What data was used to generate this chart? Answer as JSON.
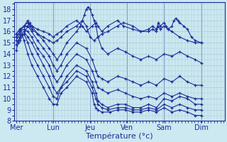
{
  "bg_color": "#cce8f0",
  "line_color": "#1a2d99",
  "grid_color": "#aac8d8",
  "marker": "+",
  "xlabel": "Température (°c)",
  "day_labels": [
    "Mer",
    "Lun",
    "Jeu",
    "Ven",
    "Sam",
    "Dim"
  ],
  "day_x": [
    0.0,
    0.95,
    1.9,
    2.85,
    3.8,
    4.75
  ],
  "ylim": [
    8.0,
    18.6
  ],
  "xlim": [
    -0.05,
    5.35
  ],
  "yticks": [
    8,
    9,
    10,
    11,
    12,
    13,
    14,
    15,
    16,
    17,
    18
  ],
  "series": [
    [
      [
        0.0,
        14.3
      ],
      [
        0.05,
        15.0
      ],
      [
        0.1,
        15.5
      ],
      [
        0.15,
        15.8
      ],
      [
        0.2,
        15.2
      ],
      [
        0.3,
        14.0
      ],
      [
        0.4,
        13.0
      ],
      [
        0.55,
        12.0
      ],
      [
        0.7,
        11.0
      ],
      [
        0.85,
        10.0
      ],
      [
        0.95,
        9.5
      ],
      [
        1.05,
        9.5
      ],
      [
        1.15,
        10.5
      ],
      [
        1.3,
        11.0
      ],
      [
        1.55,
        12.0
      ],
      [
        1.8,
        11.5
      ],
      [
        1.95,
        10.5
      ],
      [
        2.0,
        9.5
      ],
      [
        2.05,
        9.2
      ],
      [
        2.1,
        9.0
      ],
      [
        2.2,
        8.8
      ],
      [
        2.4,
        8.8
      ],
      [
        2.6,
        9.0
      ],
      [
        2.8,
        9.0
      ],
      [
        3.0,
        8.8
      ],
      [
        3.2,
        8.8
      ],
      [
        3.4,
        9.0
      ],
      [
        3.6,
        8.8
      ],
      [
        3.8,
        9.2
      ],
      [
        4.0,
        8.8
      ],
      [
        4.2,
        9.0
      ],
      [
        4.4,
        8.8
      ],
      [
        4.6,
        8.5
      ],
      [
        4.75,
        8.5
      ]
    ],
    [
      [
        0.0,
        14.8
      ],
      [
        0.05,
        15.2
      ],
      [
        0.1,
        15.5
      ],
      [
        0.2,
        15.8
      ],
      [
        0.3,
        15.0
      ],
      [
        0.4,
        14.0
      ],
      [
        0.55,
        13.0
      ],
      [
        0.7,
        12.0
      ],
      [
        0.85,
        11.0
      ],
      [
        0.95,
        10.2
      ],
      [
        1.05,
        10.0
      ],
      [
        1.15,
        11.0
      ],
      [
        1.3,
        11.5
      ],
      [
        1.55,
        12.5
      ],
      [
        1.8,
        12.0
      ],
      [
        1.95,
        11.0
      ],
      [
        2.05,
        10.0
      ],
      [
        2.1,
        9.5
      ],
      [
        2.2,
        9.2
      ],
      [
        2.35,
        9.0
      ],
      [
        2.6,
        9.2
      ],
      [
        2.8,
        9.2
      ],
      [
        3.0,
        9.0
      ],
      [
        3.2,
        9.0
      ],
      [
        3.4,
        9.2
      ],
      [
        3.6,
        9.0
      ],
      [
        3.8,
        9.5
      ],
      [
        4.0,
        9.2
      ],
      [
        4.2,
        9.5
      ],
      [
        4.4,
        9.2
      ],
      [
        4.6,
        9.0
      ],
      [
        4.75,
        9.0
      ]
    ],
    [
      [
        0.0,
        15.2
      ],
      [
        0.1,
        15.8
      ],
      [
        0.2,
        16.0
      ],
      [
        0.3,
        15.5
      ],
      [
        0.4,
        15.0
      ],
      [
        0.55,
        14.0
      ],
      [
        0.7,
        13.0
      ],
      [
        0.85,
        12.0
      ],
      [
        0.95,
        11.0
      ],
      [
        1.05,
        10.5
      ],
      [
        1.15,
        11.0
      ],
      [
        1.3,
        12.0
      ],
      [
        1.55,
        13.0
      ],
      [
        1.8,
        12.5
      ],
      [
        1.95,
        11.5
      ],
      [
        2.05,
        10.5
      ],
      [
        2.1,
        9.8
      ],
      [
        2.2,
        9.5
      ],
      [
        2.35,
        9.2
      ],
      [
        2.6,
        9.5
      ],
      [
        2.8,
        9.5
      ],
      [
        3.0,
        9.2
      ],
      [
        3.2,
        9.2
      ],
      [
        3.4,
        9.5
      ],
      [
        3.6,
        9.2
      ],
      [
        3.8,
        10.0
      ],
      [
        4.0,
        9.8
      ],
      [
        4.2,
        10.2
      ],
      [
        4.4,
        10.0
      ],
      [
        4.6,
        9.5
      ],
      [
        4.75,
        9.5
      ]
    ],
    [
      [
        0.0,
        15.5
      ],
      [
        0.1,
        16.0
      ],
      [
        0.2,
        16.2
      ],
      [
        0.3,
        16.0
      ],
      [
        0.4,
        15.5
      ],
      [
        0.55,
        14.5
      ],
      [
        0.7,
        13.8
      ],
      [
        0.85,
        13.0
      ],
      [
        0.95,
        12.0
      ],
      [
        1.05,
        11.5
      ],
      [
        1.15,
        12.0
      ],
      [
        1.3,
        13.0
      ],
      [
        1.55,
        14.0
      ],
      [
        1.8,
        13.5
      ],
      [
        1.95,
        12.5
      ],
      [
        2.05,
        11.5
      ],
      [
        2.1,
        11.0
      ],
      [
        2.2,
        10.8
      ],
      [
        2.35,
        10.5
      ],
      [
        2.6,
        10.8
      ],
      [
        2.8,
        10.5
      ],
      [
        3.0,
        10.2
      ],
      [
        3.2,
        10.0
      ],
      [
        3.4,
        10.2
      ],
      [
        3.6,
        10.0
      ],
      [
        3.8,
        10.5
      ],
      [
        4.0,
        10.2
      ],
      [
        4.2,
        10.5
      ],
      [
        4.4,
        10.2
      ],
      [
        4.6,
        10.0
      ],
      [
        4.75,
        10.0
      ]
    ],
    [
      [
        0.0,
        15.8
      ],
      [
        0.1,
        16.2
      ],
      [
        0.2,
        16.5
      ],
      [
        0.3,
        16.5
      ],
      [
        0.4,
        16.0
      ],
      [
        0.55,
        15.2
      ],
      [
        0.7,
        14.5
      ],
      [
        0.85,
        13.8
      ],
      [
        0.95,
        13.0
      ],
      [
        1.05,
        12.5
      ],
      [
        1.15,
        13.0
      ],
      [
        1.3,
        14.0
      ],
      [
        1.55,
        15.0
      ],
      [
        1.8,
        14.5
      ],
      [
        1.95,
        13.5
      ],
      [
        2.05,
        12.5
      ],
      [
        2.1,
        12.0
      ],
      [
        2.2,
        11.8
      ],
      [
        2.35,
        11.5
      ],
      [
        2.6,
        12.0
      ],
      [
        2.8,
        11.8
      ],
      [
        3.0,
        11.5
      ],
      [
        3.2,
        11.2
      ],
      [
        3.4,
        11.5
      ],
      [
        3.6,
        11.2
      ],
      [
        3.8,
        11.8
      ],
      [
        4.0,
        11.5
      ],
      [
        4.2,
        12.0
      ],
      [
        4.4,
        11.5
      ],
      [
        4.6,
        11.2
      ],
      [
        4.75,
        11.2
      ]
    ],
    [
      [
        0.0,
        15.8
      ],
      [
        0.1,
        16.2
      ],
      [
        0.2,
        16.5
      ],
      [
        0.3,
        16.8
      ],
      [
        0.4,
        16.5
      ],
      [
        0.55,
        15.8
      ],
      [
        0.7,
        15.2
      ],
      [
        0.85,
        14.5
      ],
      [
        0.95,
        14.0
      ],
      [
        1.05,
        13.5
      ],
      [
        1.15,
        14.0
      ],
      [
        1.3,
        15.0
      ],
      [
        1.55,
        16.0
      ],
      [
        1.65,
        16.5
      ],
      [
        1.75,
        17.5
      ],
      [
        1.8,
        18.0
      ],
      [
        1.85,
        18.2
      ],
      [
        1.9,
        18.0
      ],
      [
        1.95,
        17.5
      ],
      [
        2.0,
        17.0
      ],
      [
        2.05,
        16.5
      ],
      [
        2.1,
        15.5
      ],
      [
        2.2,
        14.5
      ],
      [
        2.35,
        14.0
      ],
      [
        2.6,
        14.5
      ],
      [
        2.8,
        14.2
      ],
      [
        3.0,
        13.8
      ],
      [
        3.2,
        13.5
      ],
      [
        3.4,
        13.8
      ],
      [
        3.6,
        13.5
      ],
      [
        3.8,
        14.0
      ],
      [
        4.0,
        13.8
      ],
      [
        4.2,
        14.2
      ],
      [
        4.4,
        13.8
      ],
      [
        4.6,
        13.5
      ],
      [
        4.75,
        13.2
      ]
    ],
    [
      [
        0.0,
        15.5
      ],
      [
        0.1,
        16.0
      ],
      [
        0.2,
        16.5
      ],
      [
        0.3,
        17.0
      ],
      [
        0.35,
        16.5
      ],
      [
        0.4,
        16.2
      ],
      [
        0.55,
        15.8
      ],
      [
        0.7,
        15.5
      ],
      [
        0.85,
        15.2
      ],
      [
        0.95,
        15.0
      ],
      [
        1.05,
        15.2
      ],
      [
        1.15,
        15.5
      ],
      [
        1.3,
        16.0
      ],
      [
        1.55,
        16.5
      ],
      [
        1.7,
        17.0
      ],
      [
        1.8,
        16.5
      ],
      [
        1.9,
        15.5
      ],
      [
        2.0,
        15.2
      ],
      [
        2.1,
        15.5
      ],
      [
        2.2,
        15.8
      ],
      [
        2.35,
        16.0
      ],
      [
        2.6,
        16.5
      ],
      [
        2.75,
        16.8
      ],
      [
        3.0,
        16.5
      ],
      [
        3.2,
        16.0
      ],
      [
        3.4,
        16.0
      ],
      [
        3.5,
        16.2
      ],
      [
        3.6,
        16.0
      ],
      [
        3.65,
        16.5
      ],
      [
        3.7,
        16.2
      ],
      [
        3.8,
        16.5
      ],
      [
        3.9,
        16.2
      ],
      [
        4.0,
        16.0
      ],
      [
        4.2,
        15.5
      ],
      [
        4.4,
        15.2
      ],
      [
        4.6,
        15.0
      ],
      [
        4.75,
        15.0
      ]
    ],
    [
      [
        0.1,
        15.2
      ],
      [
        0.2,
        15.8
      ],
      [
        0.3,
        16.5
      ],
      [
        0.35,
        16.8
      ],
      [
        0.4,
        16.5
      ],
      [
        0.55,
        16.2
      ],
      [
        0.7,
        16.0
      ],
      [
        0.85,
        15.8
      ],
      [
        0.95,
        15.5
      ],
      [
        1.05,
        15.8
      ],
      [
        1.15,
        16.0
      ],
      [
        1.3,
        16.5
      ],
      [
        1.55,
        17.0
      ],
      [
        1.7,
        16.5
      ],
      [
        1.8,
        16.0
      ],
      [
        1.95,
        16.5
      ],
      [
        2.05,
        16.8
      ],
      [
        2.1,
        16.5
      ],
      [
        2.2,
        16.0
      ],
      [
        2.35,
        16.5
      ],
      [
        2.6,
        17.0
      ],
      [
        2.75,
        16.5
      ],
      [
        3.0,
        16.2
      ],
      [
        3.2,
        16.0
      ],
      [
        3.4,
        16.2
      ],
      [
        3.5,
        16.5
      ],
      [
        3.6,
        16.2
      ],
      [
        3.65,
        16.8
      ],
      [
        3.7,
        16.5
      ],
      [
        3.8,
        16.8
      ],
      [
        3.85,
        16.5
      ],
      [
        3.9,
        16.2
      ],
      [
        4.0,
        16.5
      ],
      [
        4.05,
        17.0
      ],
      [
        4.1,
        17.2
      ],
      [
        4.15,
        17.0
      ],
      [
        4.2,
        16.8
      ],
      [
        4.3,
        16.5
      ],
      [
        4.4,
        16.2
      ],
      [
        4.5,
        15.5
      ],
      [
        4.6,
        15.2
      ],
      [
        4.75,
        15.0
      ]
    ]
  ]
}
